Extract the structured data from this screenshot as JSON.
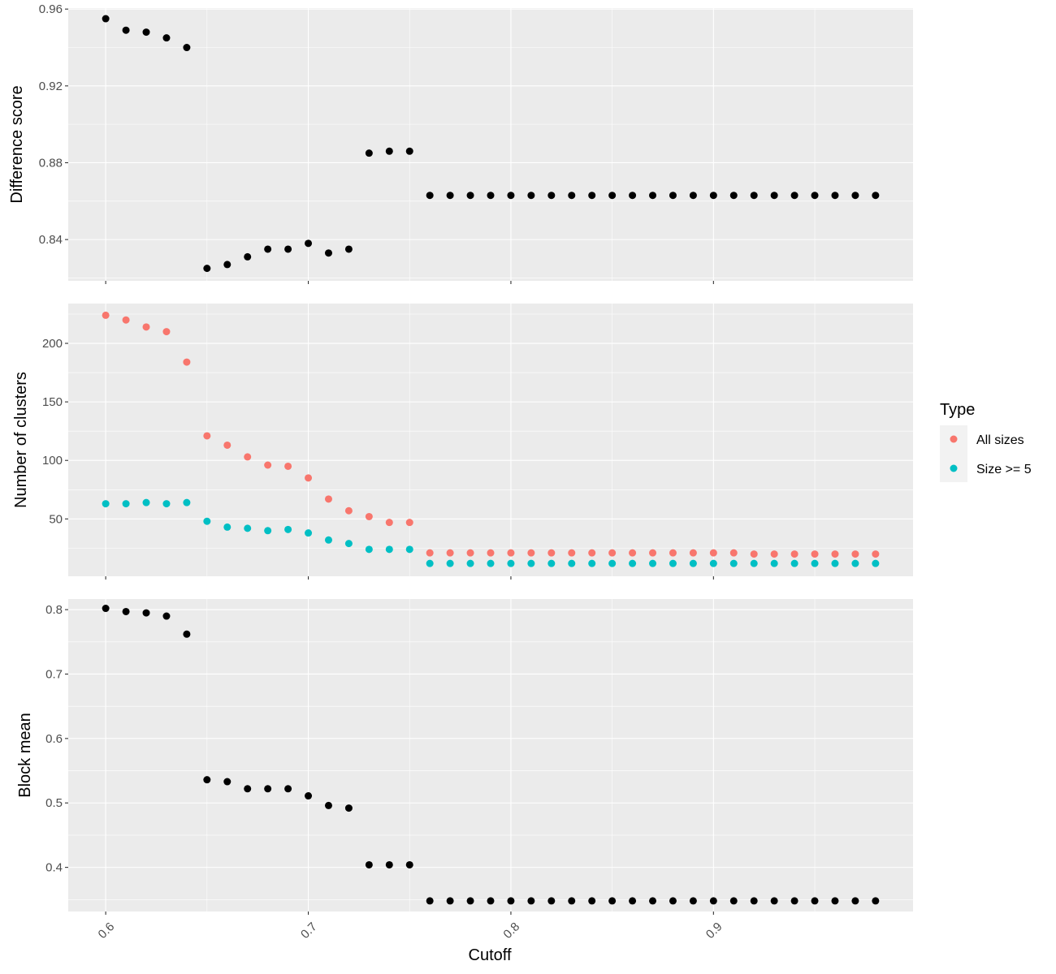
{
  "chart_data": {
    "type": "scatter",
    "xlabel": "Cutoff",
    "x_ticks": [
      0.6,
      0.7,
      0.8,
      0.9
    ],
    "x_tick_labels": [
      "0.6",
      "0.7",
      "0.8",
      "0.9"
    ],
    "xlim": [
      0.5815,
      0.9985
    ],
    "x": [
      0.6,
      0.61,
      0.62,
      0.63,
      0.64,
      0.65,
      0.66,
      0.67,
      0.68,
      0.69,
      0.7,
      0.71,
      0.72,
      0.73,
      0.74,
      0.75,
      0.76,
      0.77,
      0.78,
      0.79,
      0.8,
      0.81,
      0.82,
      0.83,
      0.84,
      0.85,
      0.86,
      0.87,
      0.88,
      0.89,
      0.9,
      0.91,
      0.92,
      0.93,
      0.94,
      0.95,
      0.96,
      0.97,
      0.98
    ],
    "grid": true,
    "background": "#ebebeb",
    "panels": [
      {
        "ylabel": "Difference score",
        "ylim": [
          0.8185,
          0.9605
        ],
        "y_ticks": [
          0.84,
          0.88,
          0.92,
          0.96
        ],
        "y_tick_labels": [
          "0.84",
          "0.88",
          "0.92",
          "0.96"
        ],
        "series": [
          {
            "color": "#000000",
            "values": [
              0.955,
              0.949,
              0.948,
              0.945,
              0.94,
              0.825,
              0.827,
              0.831,
              0.835,
              0.835,
              0.838,
              0.833,
              0.835,
              0.885,
              0.886,
              0.886,
              0.863,
              0.863,
              0.863,
              0.863,
              0.863,
              0.863,
              0.863,
              0.863,
              0.863,
              0.863,
              0.863,
              0.863,
              0.863,
              0.863,
              0.863,
              0.863,
              0.863,
              0.863,
              0.863,
              0.863,
              0.863,
              0.863,
              0.863
            ]
          }
        ]
      },
      {
        "ylabel": "Number of clusters",
        "ylim": [
          1,
          234
        ],
        "y_ticks": [
          50,
          100,
          150,
          200
        ],
        "y_tick_labels": [
          "50",
          "100",
          "150",
          "200"
        ],
        "series": [
          {
            "name": "All sizes",
            "color": "#f8766d",
            "values": [
              224,
              220,
              214,
              210,
              184,
              121,
              113,
              103,
              96,
              95,
              85,
              67,
              57,
              52,
              47,
              47,
              21,
              21,
              21,
              21,
              21,
              21,
              21,
              21,
              21,
              21,
              21,
              21,
              21,
              21,
              21,
              21,
              20,
              20,
              20,
              20,
              20,
              20,
              20
            ]
          },
          {
            "name": "Size >= 5",
            "color": "#00bfc4",
            "values": [
              63,
              63,
              64,
              63,
              64,
              48,
              43,
              42,
              40,
              41,
              38,
              32,
              29,
              24,
              24,
              24,
              12,
              12,
              12,
              12,
              12,
              12,
              12,
              12,
              12,
              12,
              12,
              12,
              12,
              12,
              12,
              12,
              12,
              12,
              12,
              12,
              12,
              12,
              12
            ]
          }
        ]
      },
      {
        "ylabel": "Block mean",
        "ylim": [
          0.3315,
          0.8165
        ],
        "y_ticks": [
          0.4,
          0.5,
          0.6,
          0.7,
          0.8
        ],
        "y_tick_labels": [
          "0.4",
          "0.5",
          "0.6",
          "0.7",
          "0.8"
        ],
        "series": [
          {
            "color": "#000000",
            "values": [
              0.802,
              0.797,
              0.795,
              0.79,
              0.762,
              0.536,
              0.533,
              0.522,
              0.522,
              0.522,
              0.511,
              0.496,
              0.492,
              0.404,
              0.404,
              0.404,
              0.348,
              0.348,
              0.348,
              0.348,
              0.348,
              0.348,
              0.348,
              0.348,
              0.348,
              0.348,
              0.348,
              0.348,
              0.348,
              0.348,
              0.348,
              0.348,
              0.348,
              0.348,
              0.348,
              0.348,
              0.348,
              0.348,
              0.348
            ]
          }
        ]
      }
    ],
    "legend": {
      "title": "Type",
      "placement": "right",
      "entries": [
        {
          "label": "All sizes",
          "color": "#f8766d"
        },
        {
          "label": "Size >= 5",
          "color": "#00bfc4"
        }
      ]
    }
  }
}
